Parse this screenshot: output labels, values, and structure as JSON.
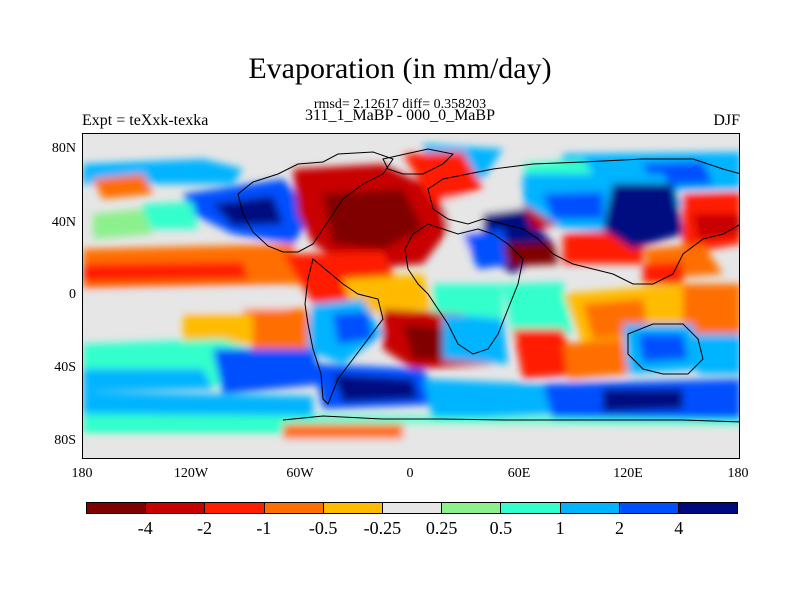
{
  "header": {
    "title": "Evaporation (in mm/day)",
    "stats": "rmsd= 2.12617 diff= 0.358203",
    "experiments": "311_1_MaBP - 000_0_MaBP",
    "expt": "Expt = teXxk-texka",
    "season": "DJF"
  },
  "map": {
    "lat_ticks": [
      "80N",
      "40N",
      "0",
      "40S",
      "80S"
    ],
    "lon_ticks": [
      "180",
      "120W",
      "60W",
      "0",
      "60E",
      "120E",
      "180"
    ]
  },
  "colorbar": {
    "colors": [
      "#800000",
      "#c80000",
      "#ff1e00",
      "#ff6e00",
      "#ffbb00",
      "#e6e6e6",
      "#8cf08c",
      "#33ffcc",
      "#00b4ff",
      "#0050ff",
      "#000a80"
    ],
    "labels": [
      "-4",
      "-2",
      "-1",
      "-0.5",
      "-0.25",
      "0.25",
      "0.5",
      "1",
      "2",
      "4"
    ]
  }
}
